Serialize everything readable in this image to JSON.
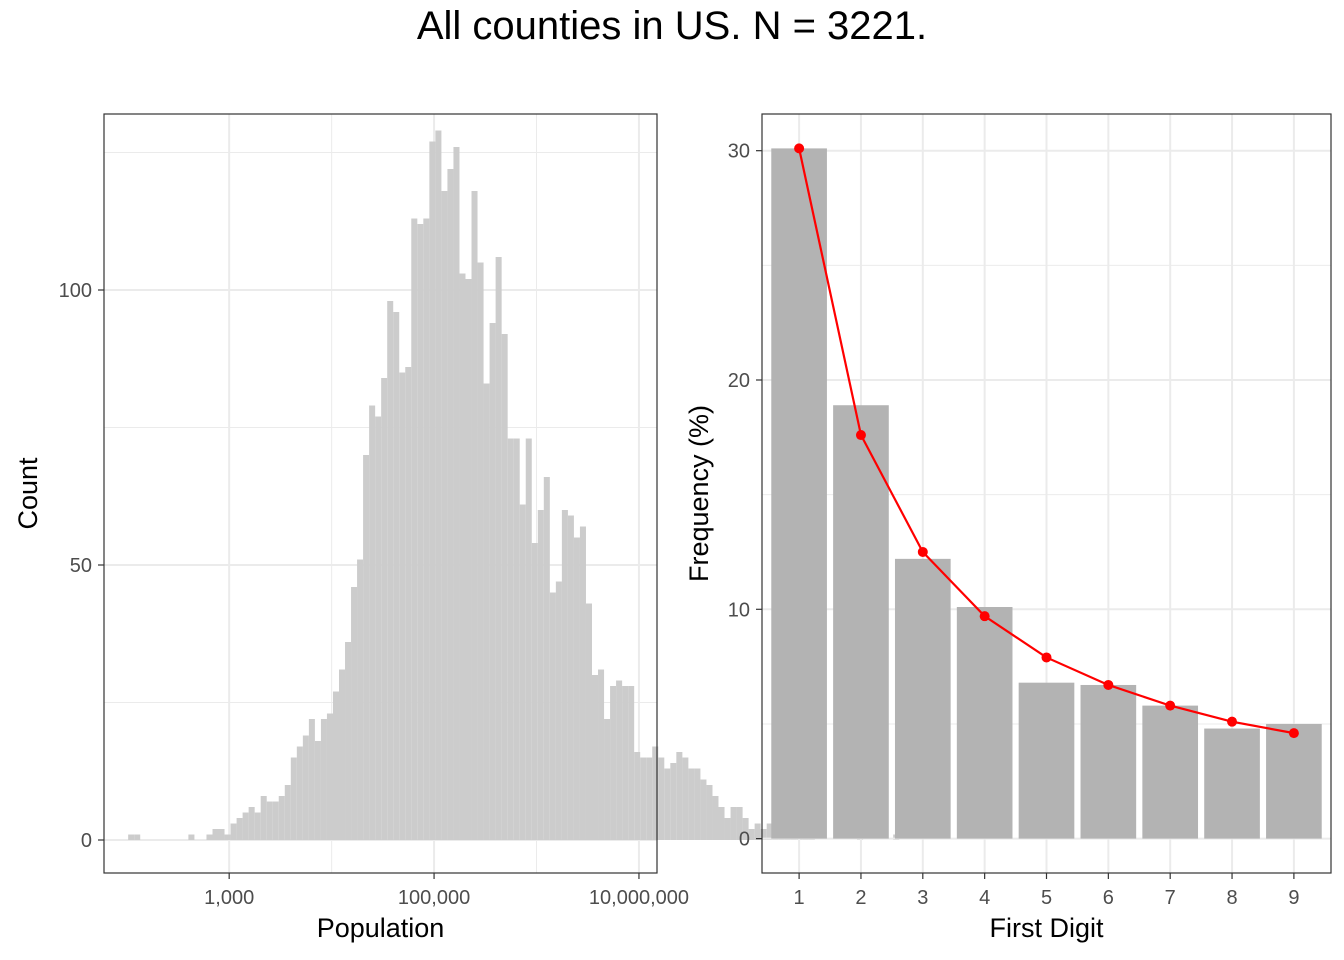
{
  "title": "All counties in US. N = 3221.",
  "colors": {
    "bar_left": "#cccccc",
    "bar_right": "#b3b3b3",
    "benford": "#ff0000",
    "grid": "#ebebeb",
    "panel_border": "#333333"
  },
  "chart_data": [
    {
      "type": "bar",
      "subtype": "histogram",
      "xlabel": "Population",
      "ylabel": "Count",
      "x_scale": "log10",
      "xlim": [
        60,
        15000000
      ],
      "ylim": [
        -6,
        132
      ],
      "x_ticks": [
        1000,
        100000,
        10000000
      ],
      "x_tick_labels": [
        "1,000",
        "100,000",
        "10,000,000"
      ],
      "y_ticks": [
        0,
        50,
        100
      ],
      "y_tick_labels": [
        "0",
        "50",
        "100"
      ],
      "grid": true,
      "bin_log10_start": 1.72,
      "bin_log10_width": 0.0588,
      "counts": [
        0,
        0,
        0,
        0,
        0,
        1,
        1,
        0,
        0,
        0,
        0,
        0,
        0,
        0,
        0,
        1,
        0,
        0,
        1,
        2,
        2,
        1,
        3,
        4,
        5,
        6,
        5,
        8,
        7,
        7,
        8,
        10,
        15,
        17,
        19,
        22,
        18,
        22,
        23,
        27,
        31,
        36,
        46,
        51,
        70,
        79,
        77,
        84,
        98,
        96,
        85,
        86,
        113,
        112,
        113,
        127,
        129,
        118,
        122,
        126,
        103,
        102,
        118,
        105,
        83,
        94,
        106,
        92,
        73,
        73,
        61,
        73,
        54,
        60,
        66,
        45,
        47,
        60,
        59,
        55,
        57,
        43,
        30,
        31,
        22,
        28,
        29,
        28,
        28,
        16,
        15,
        15,
        17,
        15,
        13,
        14,
        16,
        15,
        13,
        13,
        11,
        10,
        8,
        6,
        4,
        6,
        6,
        4,
        2,
        3,
        2,
        3,
        2,
        2,
        1,
        1,
        1,
        1,
        1,
        0,
        0,
        0,
        0,
        0,
        0,
        0,
        1,
        0,
        0,
        0,
        0,
        0,
        1
      ]
    },
    {
      "type": "bar",
      "xlabel": "First Digit",
      "ylabel": "Frequency (%)",
      "categories": [
        "1",
        "2",
        "3",
        "4",
        "5",
        "6",
        "7",
        "8",
        "9"
      ],
      "values": [
        30.1,
        18.9,
        12.2,
        10.1,
        6.8,
        6.7,
        5.8,
        4.8,
        5.0
      ],
      "overlay_line": [
        30.1,
        17.6,
        12.5,
        9.7,
        7.9,
        6.7,
        5.8,
        5.1,
        4.6
      ],
      "ylim": [
        -1.5,
        31.6
      ],
      "y_ticks": [
        0,
        10,
        20,
        30
      ],
      "y_tick_labels": [
        "0",
        "10",
        "20",
        "30"
      ],
      "grid": true
    }
  ]
}
